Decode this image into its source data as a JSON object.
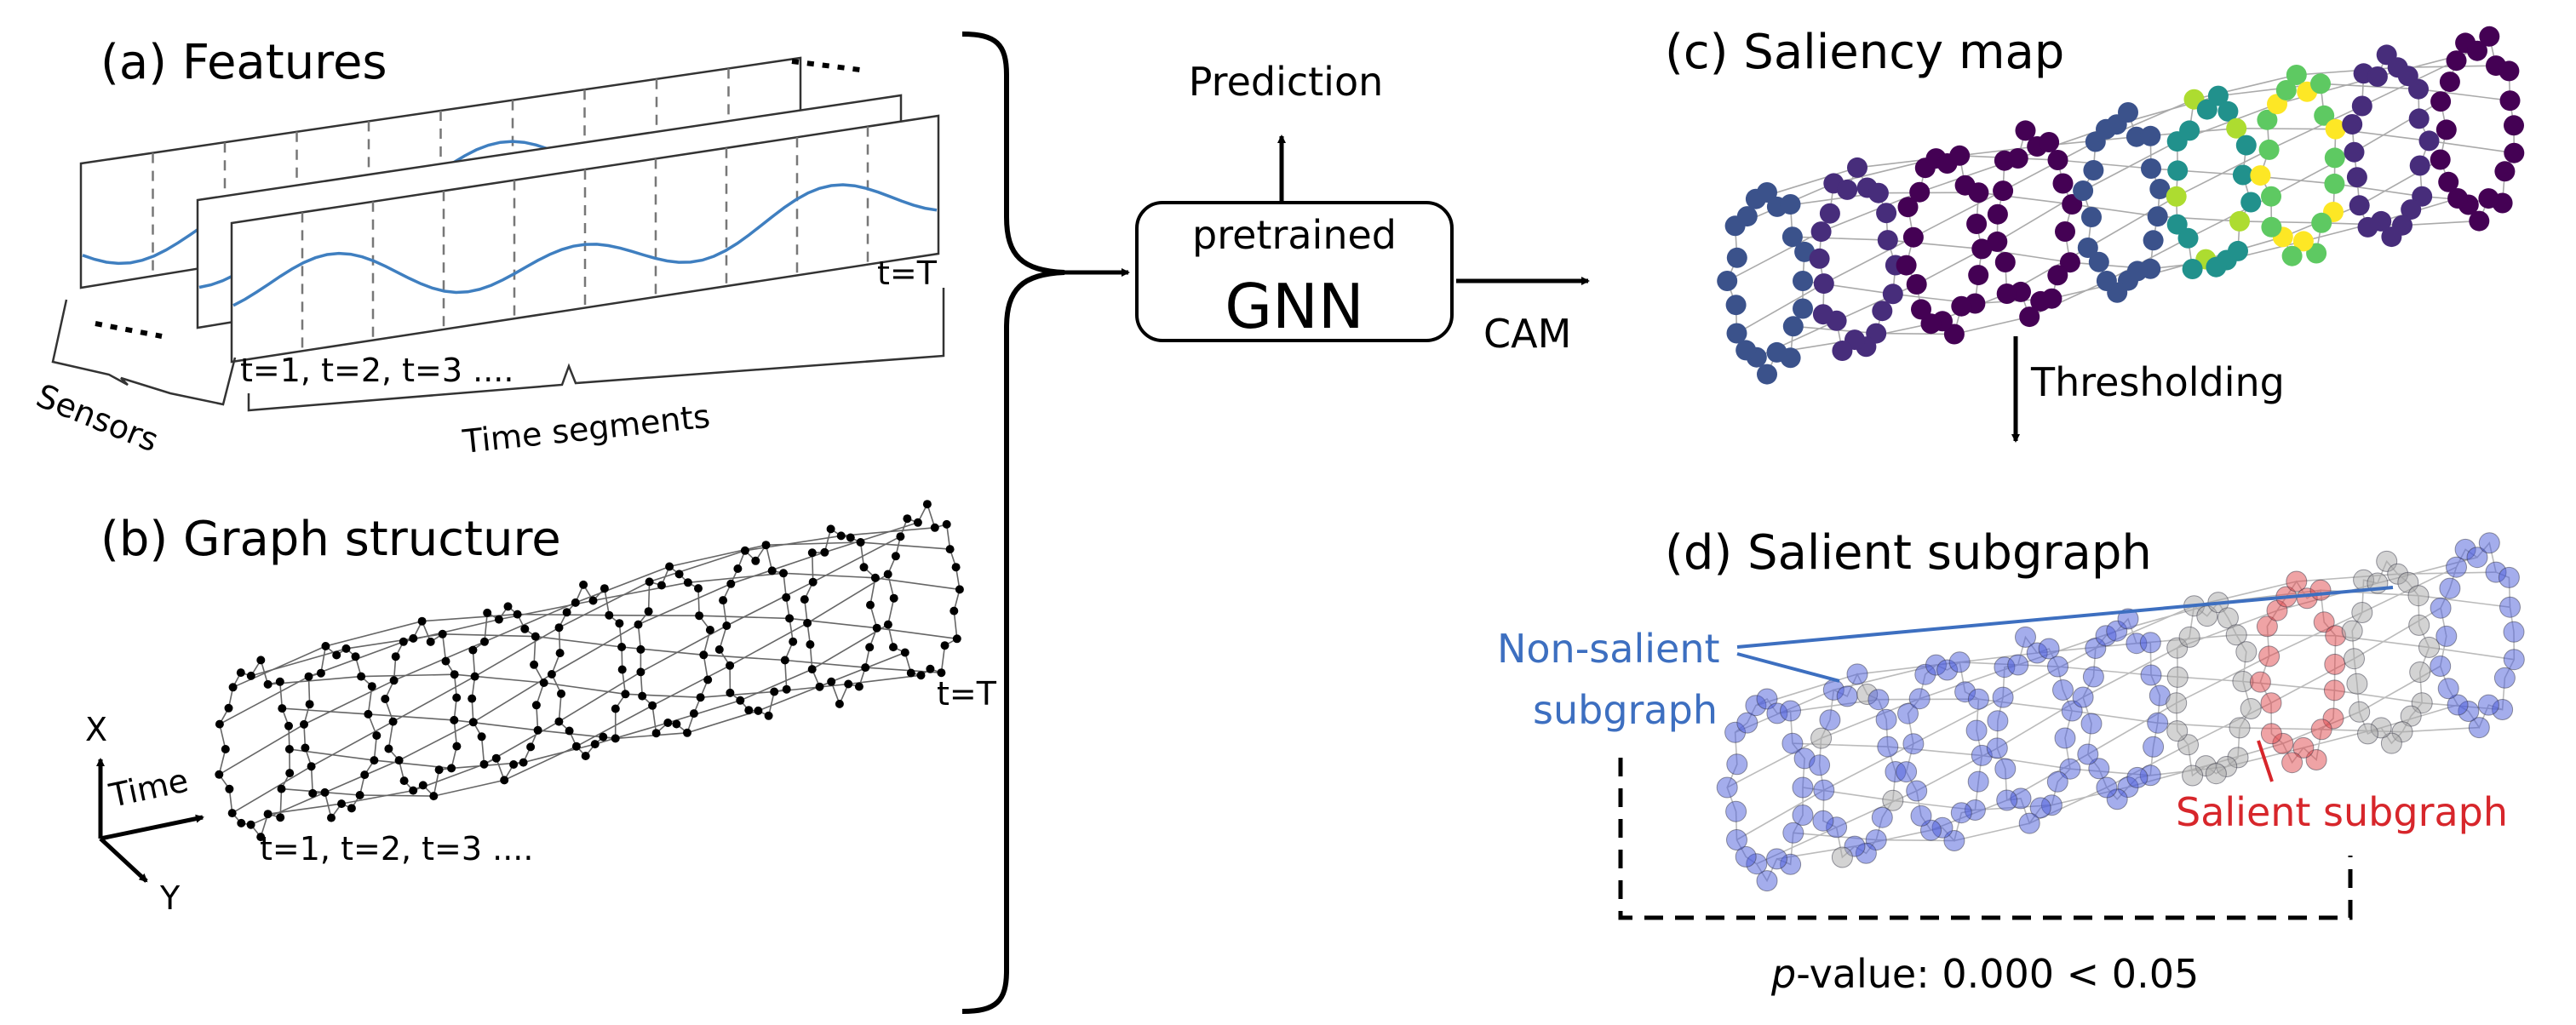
{
  "panels": {
    "features": {
      "title": "(a) Features",
      "t_end_label": "t=T",
      "t_start_label": "t=1,  t=2,  t=3 ....",
      "sensors_label": "Sensors",
      "segments_label": "Time segments"
    },
    "graph": {
      "title": "(b) Graph structure",
      "t_end_label": "t=T",
      "t_start_label": "t=1,  t=2,  t=3 ....",
      "axis_x": "X",
      "axis_time": "Time",
      "axis_y": "Y"
    },
    "model": {
      "prediction_label": "Prediction",
      "gnn_top": "pretrained",
      "gnn_main": "GNN",
      "cam_label": "CAM"
    },
    "saliency": {
      "title": "(c) Saliency map",
      "threshold_label": "Thresholding"
    },
    "subgraph": {
      "title": "(d) Salient subgraph",
      "nonsalient_line1": "Non-salient",
      "nonsalient_line2": "subgraph",
      "salient_label": "Salient subgraph",
      "pvalue_italic": "p",
      "pvalue_rest": "-value: 0.000 < 0.05"
    }
  },
  "colors": {
    "signal": "#3f7fc0",
    "nonsalient": "#3d6fc0",
    "salient": "#d7262b",
    "viridis": [
      "#440154",
      "#472d7b",
      "#3b528b",
      "#2c728e",
      "#21918c",
      "#28ae80",
      "#5ec962",
      "#addc30",
      "#fde725"
    ]
  }
}
